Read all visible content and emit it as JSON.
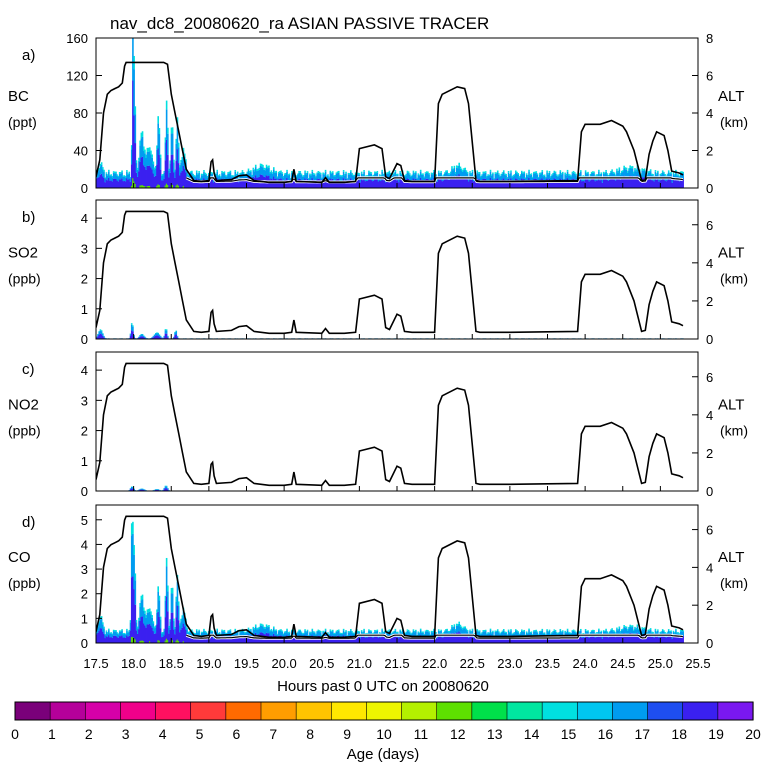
{
  "figure": {
    "title": "nav_dc8_20080620_ra ASIAN PASSIVE TRACER",
    "xlabel": "Hours past 0 UTC on 20080620",
    "x_ticks": [
      17.5,
      18.0,
      18.5,
      19.0,
      19.5,
      20.0,
      20.5,
      21.0,
      21.5,
      22.0,
      22.5,
      23.0,
      23.5,
      24.0,
      24.5,
      25.0,
      25.5
    ],
    "x_range": [
      17.5,
      25.5
    ]
  },
  "chart_data": [
    {
      "type": "area",
      "panel_letter": "a)",
      "title": "",
      "ylabel_name": "BC",
      "ylabel_unit": "(ppt)",
      "ylim": [
        0,
        160
      ],
      "y_ticks": [
        0,
        40,
        80,
        120,
        160
      ],
      "y2label_name": "ALT",
      "y2label_unit": "(km)",
      "y2lim": [
        0,
        8
      ],
      "y2_ticks": [
        0,
        2,
        4,
        6,
        8
      ],
      "baseline": 15,
      "spikes": [
        [
          17.55,
          10,
          0.04
        ],
        [
          17.98,
          155,
          0.012
        ],
        [
          18.0,
          100,
          0.02
        ],
        [
          18.1,
          45,
          0.04
        ],
        [
          18.2,
          30,
          0.05
        ],
        [
          18.32,
          60,
          0.025
        ],
        [
          18.43,
          78,
          0.02
        ],
        [
          18.5,
          55,
          0.02
        ],
        [
          18.57,
          60,
          0.02
        ],
        [
          18.65,
          25,
          0.04
        ],
        [
          19.7,
          8,
          0.15
        ],
        [
          22.3,
          8,
          0.1
        ],
        [
          24.6,
          6,
          0.2
        ]
      ],
      "line_factor": 0.7,
      "line_scale": 9
    },
    {
      "type": "area",
      "panel_letter": "b)",
      "title": "",
      "ylabel_name": "SO2",
      "ylabel_unit": "(ppb)",
      "ylim": [
        0,
        4.6
      ],
      "y_ticks": [
        0,
        1,
        2,
        3,
        4
      ],
      "y2label_name": "ALT",
      "y2label_unit": "(km)",
      "y2lim": [
        0,
        7.3
      ],
      "y2_ticks": [
        0,
        2,
        4,
        6
      ],
      "baseline": 0.02,
      "spikes": [
        [
          17.55,
          0.3,
          0.04
        ],
        [
          17.97,
          0.55,
          0.02
        ],
        [
          18.1,
          0.15,
          0.04
        ],
        [
          18.3,
          0.2,
          0.05
        ],
        [
          18.42,
          0.35,
          0.02
        ],
        [
          18.55,
          0.28,
          0.02
        ]
      ],
      "line_factor": 0,
      "line_scale": 1
    },
    {
      "type": "area",
      "panel_letter": "c)",
      "title": "",
      "ylabel_name": "NO2",
      "ylabel_unit": "(ppb)",
      "ylim": [
        0,
        4.6
      ],
      "y_ticks": [
        0,
        1,
        2,
        3,
        4
      ],
      "y2label_name": "ALT",
      "y2label_unit": "(km)",
      "y2lim": [
        0,
        7.3
      ],
      "y2_ticks": [
        0,
        2,
        4,
        6
      ],
      "baseline": 0.005,
      "spikes": [
        [
          17.97,
          0.15,
          0.03
        ],
        [
          18.1,
          0.08,
          0.05
        ],
        [
          18.3,
          0.06,
          0.05
        ],
        [
          18.42,
          0.18,
          0.03
        ]
      ],
      "line_factor": 0,
      "line_scale": 1
    },
    {
      "type": "area",
      "panel_letter": "d)",
      "title": "",
      "ylabel_name": "CO",
      "ylabel_unit": "(ppb)",
      "ylim": [
        0,
        5.6
      ],
      "y_ticks": [
        0,
        1,
        2,
        3,
        4,
        5
      ],
      "y2label_name": "ALT",
      "y2label_unit": "(km)",
      "y2lim": [
        0,
        7.3
      ],
      "y2_ticks": [
        0,
        2,
        4,
        6
      ],
      "baseline": 0.45,
      "spikes": [
        [
          17.55,
          0.6,
          0.04
        ],
        [
          17.97,
          5.0,
          0.015
        ],
        [
          18.0,
          3.3,
          0.02
        ],
        [
          18.1,
          1.5,
          0.04
        ],
        [
          18.2,
          1.0,
          0.05
        ],
        [
          18.32,
          1.8,
          0.025
        ],
        [
          18.43,
          3.0,
          0.02
        ],
        [
          18.5,
          2.0,
          0.02
        ],
        [
          18.57,
          2.3,
          0.02
        ],
        [
          18.65,
          0.9,
          0.04
        ],
        [
          19.7,
          0.25,
          0.15
        ],
        [
          22.3,
          0.3,
          0.1
        ],
        [
          24.6,
          0.2,
          0.2
        ]
      ],
      "line_factor": 0.6,
      "line_scale": 0.3
    }
  ],
  "altitude_km": {
    "x": [
      17.5,
      17.55,
      17.6,
      17.65,
      17.7,
      17.75,
      17.8,
      17.85,
      17.88,
      17.9,
      18.0,
      18.1,
      18.2,
      18.3,
      18.4,
      18.45,
      18.5,
      18.55,
      18.6,
      18.65,
      18.7,
      18.8,
      18.9,
      19.0,
      19.03,
      19.05,
      19.07,
      19.1,
      19.3,
      19.4,
      19.5,
      19.6,
      19.8,
      20.0,
      20.1,
      20.13,
      20.16,
      20.5,
      20.55,
      20.6,
      20.8,
      20.95,
      21.0,
      21.2,
      21.3,
      21.35,
      21.4,
      21.5,
      21.55,
      21.6,
      21.7,
      22.0,
      22.05,
      22.1,
      22.3,
      22.4,
      22.45,
      22.55,
      22.6,
      22.7,
      23.0,
      23.5,
      23.9,
      23.95,
      24.0,
      24.2,
      24.35,
      24.5,
      24.55,
      24.65,
      24.75,
      24.8,
      24.85,
      24.9,
      24.95,
      25.05,
      25.1,
      25.15,
      25.25,
      25.3
    ],
    "y": [
      0.6,
      1.5,
      4.0,
      5.0,
      5.2,
      5.3,
      5.4,
      5.6,
      6.5,
      6.7,
      6.7,
      6.7,
      6.7,
      6.7,
      6.7,
      6.6,
      5.0,
      4.0,
      3.0,
      2.0,
      1.0,
      0.4,
      0.35,
      0.4,
      1.4,
      1.5,
      0.8,
      0.4,
      0.45,
      0.65,
      0.7,
      0.4,
      0.3,
      0.3,
      0.35,
      1.0,
      0.35,
      0.3,
      0.55,
      0.3,
      0.3,
      0.35,
      2.1,
      2.3,
      2.1,
      0.6,
      0.5,
      1.3,
      1.2,
      0.4,
      0.35,
      0.35,
      4.5,
      5.0,
      5.4,
      5.3,
      4.5,
      0.4,
      0.35,
      0.35,
      0.35,
      0.38,
      0.4,
      3.0,
      3.4,
      3.4,
      3.6,
      3.3,
      3.0,
      2.0,
      0.4,
      0.45,
      1.8,
      2.5,
      3.0,
      2.8,
      2.0,
      0.9,
      0.8,
      0.7
    ]
  },
  "colorbar": {
    "label": "Age (days)",
    "ticks": [
      "0",
      "1",
      "2",
      "3",
      "4",
      "5",
      "6",
      "7",
      "8",
      "9",
      "10",
      "11",
      "12",
      "13",
      "14",
      "15",
      "16",
      "17",
      "18",
      "19",
      "20"
    ],
    "colors": [
      "#7a007a",
      "#b5009a",
      "#d600a8",
      "#f0008a",
      "#ff1060",
      "#ff3a3a",
      "#ff6a00",
      "#ff9d00",
      "#ffc400",
      "#ffe800",
      "#eef500",
      "#b4f000",
      "#5ee000",
      "#00e04a",
      "#00e6a0",
      "#00e0e0",
      "#00c6f0",
      "#009cf0",
      "#1e4ef0",
      "#3a20f0",
      "#7a18f0"
    ]
  }
}
